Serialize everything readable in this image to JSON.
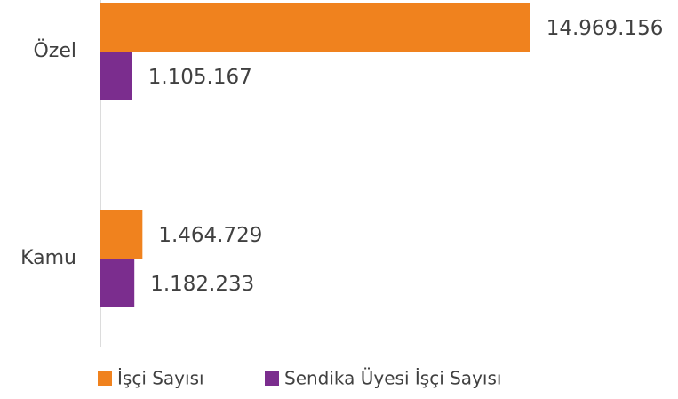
{
  "chart_data": {
    "type": "hbar",
    "categories": [
      "Özel",
      "Kamu"
    ],
    "series": [
      {
        "name": "İşçi Sayısı",
        "color": "#f0821e",
        "values": [
          14969156,
          1464729
        ],
        "value_labels": [
          "14.969.156",
          "1.464.729"
        ]
      },
      {
        "name": "Sendika Üyesi İşçi Sayısı",
        "color": "#7b2d8e",
        "values": [
          1105167,
          1182233
        ],
        "value_labels": [
          "1.105.167",
          "1.182.233"
        ]
      }
    ],
    "xlim": [
      0,
      16000000
    ],
    "legend": "bottom"
  }
}
